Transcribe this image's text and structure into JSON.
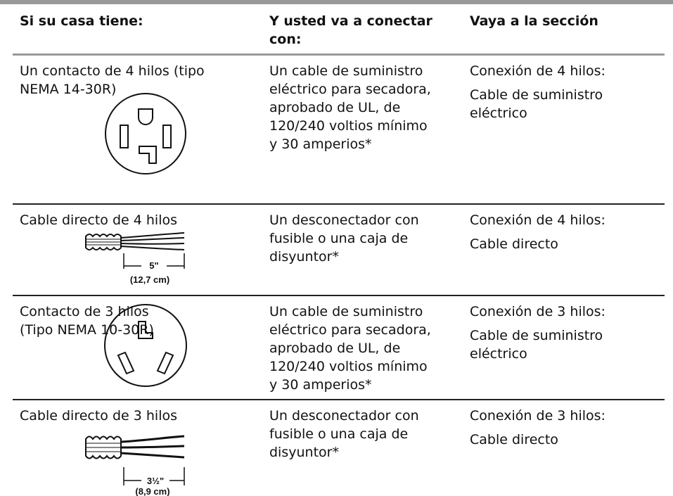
{
  "header": {
    "columns": [
      "Si su casa tiene:",
      [
        "Y usted va a conectar",
        "con:"
      ],
      "Vaya a la sección"
    ]
  },
  "rows": [
    {
      "situation": [
        "Un contacto de 4 hilos (tipo",
        "NEMA 14-30R)"
      ],
      "connect_with": [
        "Un cable de suministro",
        "eléctrico para secadora,",
        "aprobado de UL, de",
        "120/240 voltios mínimo",
        "y 30 amperios*"
      ],
      "section": "Conexión de 4 hilos:",
      "subsection": [
        "Cable de suministro",
        "eléctrico"
      ]
    },
    {
      "situation": [
        "Cable directo de 4 hilos"
      ],
      "connect_with": [
        "Un desconectador con",
        "fusible o una caja de",
        "disyuntor*"
      ],
      "section": "Conexión de 4 hilos:",
      "subsection": [
        "Cable directo"
      ],
      "dimension": "5\"",
      "dimension_metric": "(12,7 cm)"
    },
    {
      "situation": [
        "Contacto de 3 hilos",
        "(Tipo NEMA 10-30R)"
      ],
      "connect_with": [
        "Un cable de suministro",
        "eléctrico para secadora,",
        "aprobado de UL, de",
        "120/240 voltios mínimo",
        "y 30 amperios*"
      ],
      "section": "Conexión de 3 hilos:",
      "subsection": [
        "Cable de suministro",
        "eléctrico"
      ]
    },
    {
      "situation": [
        "Cable directo de 3 hilos"
      ],
      "connect_with": [
        "Un desconectador con",
        "fusible o una caja de",
        "disyuntor*"
      ],
      "section": "Conexión de 3 hilos:",
      "subsection": [
        "Cable directo"
      ],
      "dimension": "3½\"",
      "dimension_metric": "(8,9 cm)"
    }
  ]
}
